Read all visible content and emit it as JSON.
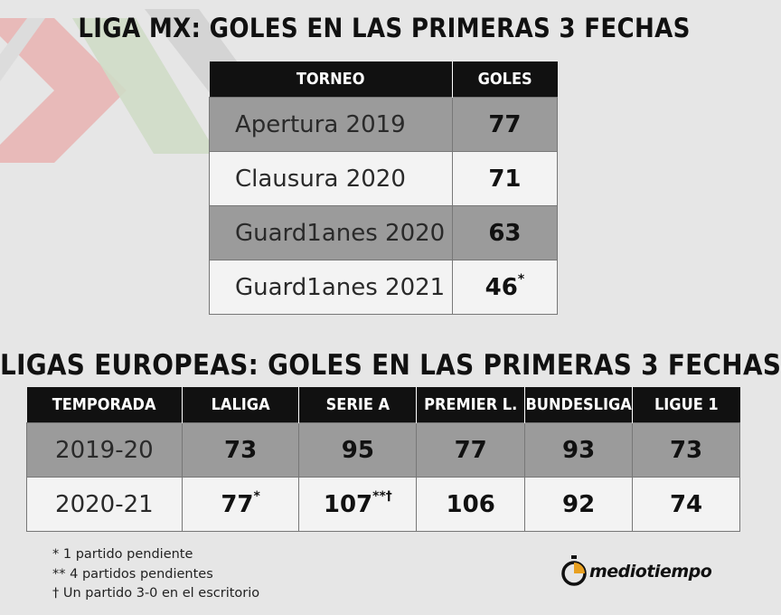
{
  "liga_mx": {
    "title": "LIGA MX: GOLES EN LAS PRIMERAS 3 FECHAS",
    "headers": [
      "TORNEO",
      "GOLES"
    ],
    "rows": [
      {
        "torneo": "Apertura 2019",
        "goles": "77",
        "mark": ""
      },
      {
        "torneo": "Clausura 2020",
        "goles": "71",
        "mark": ""
      },
      {
        "torneo": "Guard1anes 2020",
        "goles": "63",
        "mark": ""
      },
      {
        "torneo": "Guard1anes 2021",
        "goles": "46",
        "mark": "*"
      }
    ]
  },
  "europa": {
    "title": "LIGAS EUROPEAS: GOLES EN LAS PRIMERAS 3 FECHAS",
    "headers": [
      "TEMPORADA",
      "LALIGA",
      "SERIE A",
      "PREMIER L.",
      "BUNDESLIGA",
      "LIGUE 1"
    ],
    "rows": [
      {
        "season": "2019-20",
        "values": [
          "73",
          "95",
          "77",
          "93",
          "73"
        ],
        "marks": [
          "",
          "",
          "",
          "",
          ""
        ]
      },
      {
        "season": "2020-21",
        "values": [
          "77",
          "107",
          "106",
          "92",
          "74"
        ],
        "marks": [
          "*",
          "**†",
          "",
          "",
          ""
        ]
      }
    ]
  },
  "notes": [
    "* 1 partido pendiente",
    "** 4 partidos pendientes",
    "† Un partido 3-0 en el escritorio"
  ],
  "brand": {
    "name": "mediotiempo"
  },
  "colors": {
    "header_bg": "#111111",
    "row_dark": "#9b9b9b",
    "row_light": "#f3f3f3",
    "logo_red": "#e8b2b0",
    "logo_green": "#cfdcc6",
    "logo_gray": "#d0d0d0"
  },
  "chart_data": [
    {
      "type": "table",
      "title": "LIGA MX: GOLES EN LAS PRIMERAS 3 FECHAS",
      "columns": [
        "TORNEO",
        "GOLES"
      ],
      "categories": [
        "Apertura 2019",
        "Clausura 2020",
        "Guard1anes 2020",
        "Guard1anes 2021"
      ],
      "series": [
        {
          "name": "GOLES",
          "values": [
            77,
            71,
            63,
            46
          ]
        }
      ]
    },
    {
      "type": "table",
      "title": "LIGAS EUROPEAS: GOLES EN LAS PRIMERAS 3 FECHAS",
      "columns": [
        "TEMPORADA",
        "LALIGA",
        "SERIE A",
        "PREMIER L.",
        "BUNDESLIGA",
        "LIGUE 1"
      ],
      "categories": [
        "LALIGA",
        "SERIE A",
        "PREMIER L.",
        "BUNDESLIGA",
        "LIGUE 1"
      ],
      "series": [
        {
          "name": "2019-20",
          "values": [
            73,
            95,
            77,
            93,
            73
          ]
        },
        {
          "name": "2020-21",
          "values": [
            77,
            107,
            106,
            92,
            74
          ]
        }
      ]
    }
  ]
}
